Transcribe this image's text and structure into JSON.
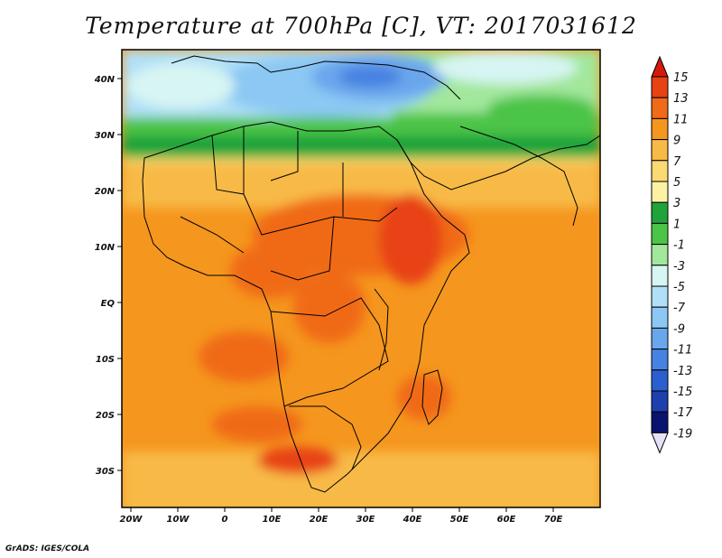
{
  "title": "Temperature at 700hPa [C], VT: 2017031612",
  "credit": "GrADS: IGES/COLA",
  "map": {
    "lon_labels": [
      "20W",
      "10W",
      "0",
      "10E",
      "20E",
      "30E",
      "40E",
      "50E",
      "60E",
      "70E"
    ],
    "lat_labels": [
      "40N",
      "30N",
      "20N",
      "10N",
      "EQ",
      "10S",
      "20S",
      "30S"
    ]
  },
  "colorbar": {
    "labels": [
      "15",
      "13",
      "11",
      "9",
      "7",
      "5",
      "3",
      "1",
      "-1",
      "-3",
      "-5",
      "-7",
      "-9",
      "-11",
      "-13",
      "-15",
      "-17",
      "-19"
    ],
    "colors": [
      "#d31a0c",
      "#e84212",
      "#f06a18",
      "#f5961e",
      "#f8ba47",
      "#fbd973",
      "#fdf2a3",
      "#1fa33a",
      "#4bc447",
      "#a2e79c",
      "#d7f5f3",
      "#b0e0f7",
      "#8cc8f3",
      "#6aa6ec",
      "#4682e1",
      "#2c5fce",
      "#1e40ac",
      "#0a146e",
      "#e5e2f8"
    ]
  }
}
